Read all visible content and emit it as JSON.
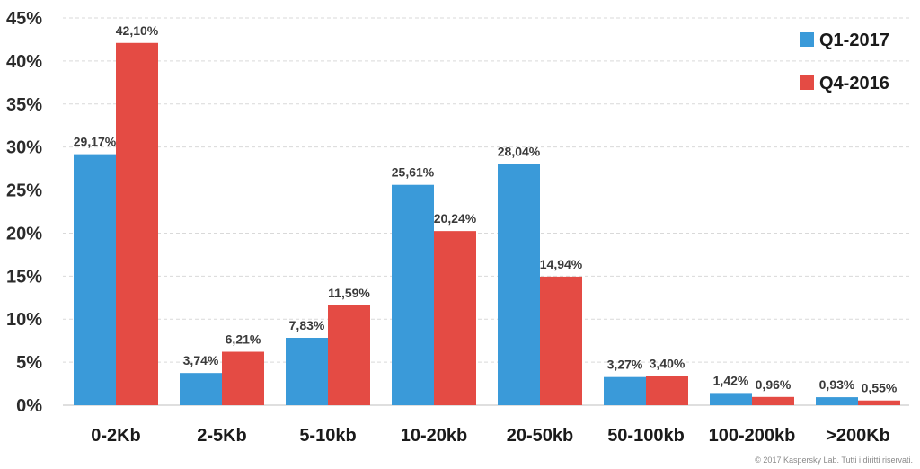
{
  "chart_data": {
    "type": "bar",
    "categories": [
      "0-2Kb",
      "2-5Kb",
      "5-10kb",
      "10-20kb",
      "20-50kb",
      "50-100kb",
      "100-200kb",
      ">200Kb"
    ],
    "series": [
      {
        "name": "Q1-2017",
        "color": "#3a9ad9",
        "values": [
          29.17,
          3.74,
          7.83,
          25.61,
          28.04,
          3.27,
          1.42,
          0.93
        ],
        "labels": [
          "29,17%",
          "3,74%",
          "7,83%",
          "25,61%",
          "28,04%",
          "3,27%",
          "1,42%",
          "0,93%"
        ]
      },
      {
        "name": "Q4-2016",
        "color": "#e44b44",
        "values": [
          42.1,
          6.21,
          11.59,
          20.24,
          14.94,
          3.4,
          0.96,
          0.55
        ],
        "labels": [
          "42,10%",
          "6,21%",
          "11,59%",
          "20,24%",
          "14,94%",
          "3,40%",
          "0,96%",
          "0,55%"
        ]
      }
    ],
    "ylim": [
      0,
      45
    ],
    "yticks": [
      {
        "value": 0,
        "label": "0%"
      },
      {
        "value": 5,
        "label": "5%"
      },
      {
        "value": 10,
        "label": "10%"
      },
      {
        "value": 15,
        "label": "15%"
      },
      {
        "value": 20,
        "label": "20%"
      },
      {
        "value": 25,
        "label": "25%"
      },
      {
        "value": 30,
        "label": "30%"
      },
      {
        "value": 35,
        "label": "35%"
      },
      {
        "value": 40,
        "label": "40%"
      },
      {
        "value": 45,
        "label": "45%"
      }
    ],
    "grid": true,
    "legend_position": "top-right"
  },
  "footer": {
    "copyright": "© 2017 Kaspersky Lab. Tutti i diritti riservati."
  }
}
